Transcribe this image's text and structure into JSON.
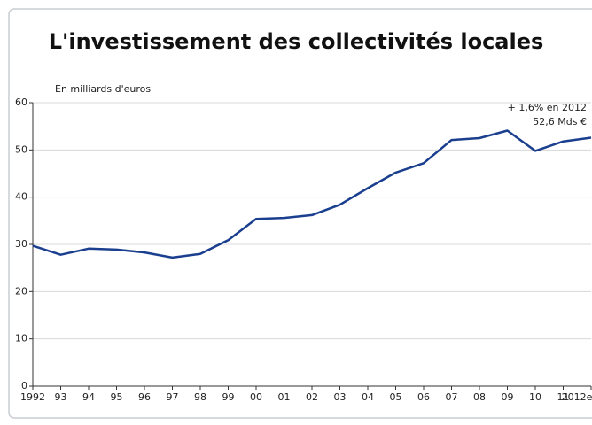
{
  "chart_data": {
    "type": "line",
    "title": "L'investissement des collectivités locales",
    "y_label": "En milliards d'euros",
    "categories": [
      "1992",
      "93",
      "94",
      "95",
      "96",
      "97",
      "98",
      "99",
      "00",
      "01",
      "02",
      "03",
      "04",
      "05",
      "06",
      "07",
      "08",
      "09",
      "10",
      "11",
      "2012e"
    ],
    "values": [
      29.7,
      27.8,
      29.1,
      28.9,
      28.3,
      27.2,
      28.0,
      30.9,
      35.4,
      35.6,
      36.2,
      38.4,
      41.9,
      45.2,
      47.2,
      52.1,
      52.5,
      54.1,
      49.8,
      51.8,
      52.6
    ],
    "color": "#1b3f8f",
    "annotations": [
      "+ 1,6% en 2012",
      "52,6 Mds €"
    ],
    "ylim": [
      0,
      60
    ],
    "yticks": [
      0,
      10,
      20,
      30,
      40,
      50,
      60
    ],
    "grid": true
  }
}
